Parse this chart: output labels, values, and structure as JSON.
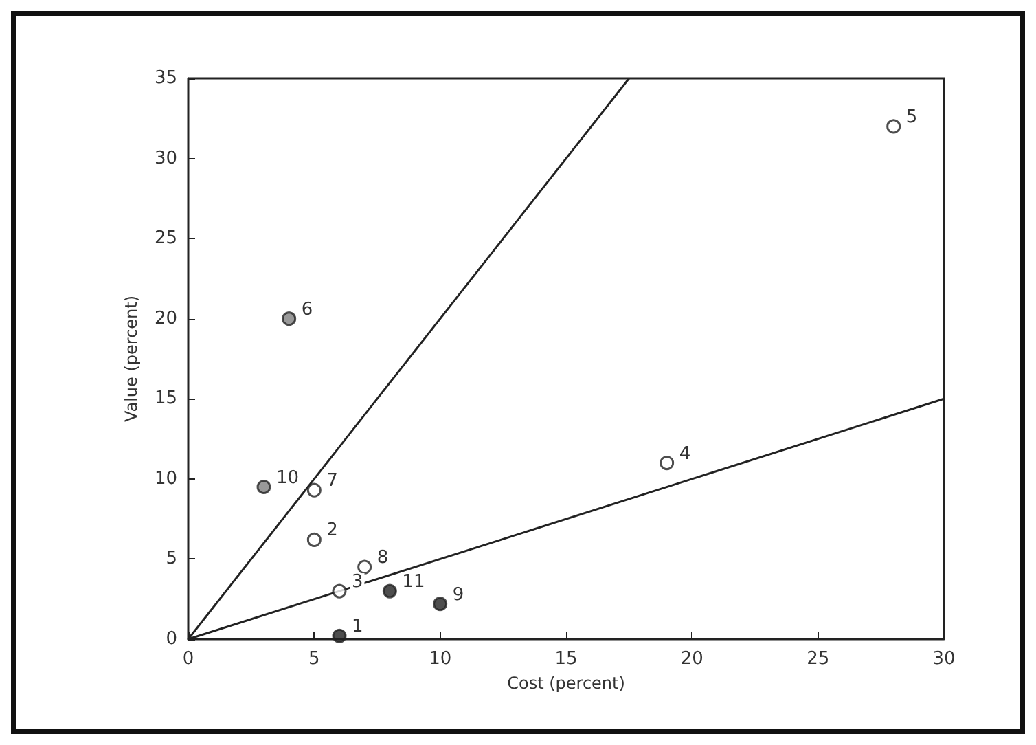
{
  "chart_data": {
    "type": "scatter",
    "xlabel": "Cost (percent)",
    "ylabel": "Value (percent)",
    "xlim": [
      0,
      30
    ],
    "ylim": [
      0,
      35
    ],
    "xticks": [
      0,
      5,
      10,
      15,
      20,
      25,
      30
    ],
    "yticks": [
      0,
      5,
      10,
      15,
      20,
      25,
      30,
      35
    ],
    "grid": false,
    "marker": "circle",
    "series": [
      {
        "color": "#ffffff",
        "x": [
          5,
          6,
          19,
          28,
          5,
          7
        ],
        "values": [
          6.2,
          3,
          11,
          32,
          9.3,
          4.5
        ]
      },
      {
        "color": "#808080",
        "x": [
          4,
          3
        ],
        "values": [
          20,
          9.5
        ]
      },
      {
        "color": "#222222",
        "x": [
          6,
          10,
          8
        ],
        "values": [
          0.2,
          2.2,
          3
        ]
      },
      {
        "type": "line",
        "marker": "none",
        "color": "#222222",
        "x": [
          0,
          17.5
        ],
        "values": [
          0,
          35
        ]
      },
      {
        "type": "line",
        "marker": "none",
        "color": "#222222",
        "x": [
          0,
          30
        ],
        "values": [
          0,
          15
        ]
      }
    ],
    "annotations": [
      {
        "text": "1",
        "x": 6,
        "y": 0.2
      },
      {
        "text": "2",
        "x": 5,
        "y": 6.2
      },
      {
        "text": "3",
        "x": 6,
        "y": 3
      },
      {
        "text": "4",
        "x": 19,
        "y": 11
      },
      {
        "text": "5",
        "x": 28,
        "y": 32
      },
      {
        "text": "6",
        "x": 4,
        "y": 20
      },
      {
        "text": "7",
        "x": 5,
        "y": 9.3
      },
      {
        "text": "8",
        "x": 7,
        "y": 4.5
      },
      {
        "text": "9",
        "x": 10,
        "y": 2.2
      },
      {
        "text": "10",
        "x": 3,
        "y": 9.5
      },
      {
        "text": "11",
        "x": 8,
        "y": 3
      }
    ]
  }
}
